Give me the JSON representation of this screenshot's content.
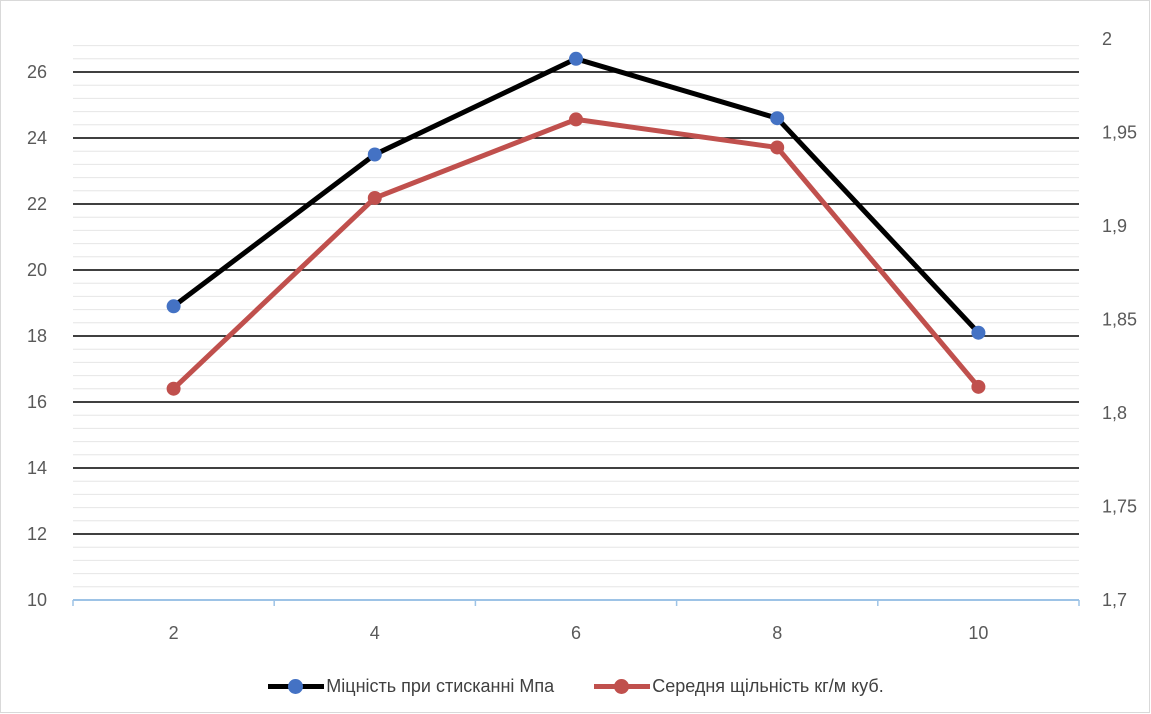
{
  "chart_data": {
    "type": "line",
    "x": [
      2,
      4,
      6,
      8,
      10
    ],
    "xticks": [
      "2",
      "4",
      "6",
      "8",
      "10"
    ],
    "series": [
      {
        "name": "Міцність при стисканні Мпа",
        "axis": "left",
        "values": [
          18.9,
          23.5,
          26.4,
          24.6,
          18.1
        ],
        "line_color": "#000000",
        "marker_color": "#4472c4"
      },
      {
        "name": "Середня щільність кг/м куб.",
        "axis": "right",
        "values": [
          1.813,
          1.915,
          1.957,
          1.942,
          1.814
        ],
        "line_color": "#c0504d",
        "marker_color": "#c0504d"
      }
    ],
    "y_left": {
      "ylim": [
        10,
        27
      ],
      "ticks": [
        "10",
        "12",
        "14",
        "16",
        "18",
        "20",
        "22",
        "24",
        "26"
      ]
    },
    "y_right": {
      "ylim": [
        1.7,
        2.0
      ],
      "ticks": [
        "1,7",
        "1,75",
        "1,8",
        "1,85",
        "1,9",
        "1,95",
        "2"
      ]
    },
    "title": "",
    "xlabel": "",
    "ylabel": "",
    "grid": true,
    "legend": "bottom"
  }
}
